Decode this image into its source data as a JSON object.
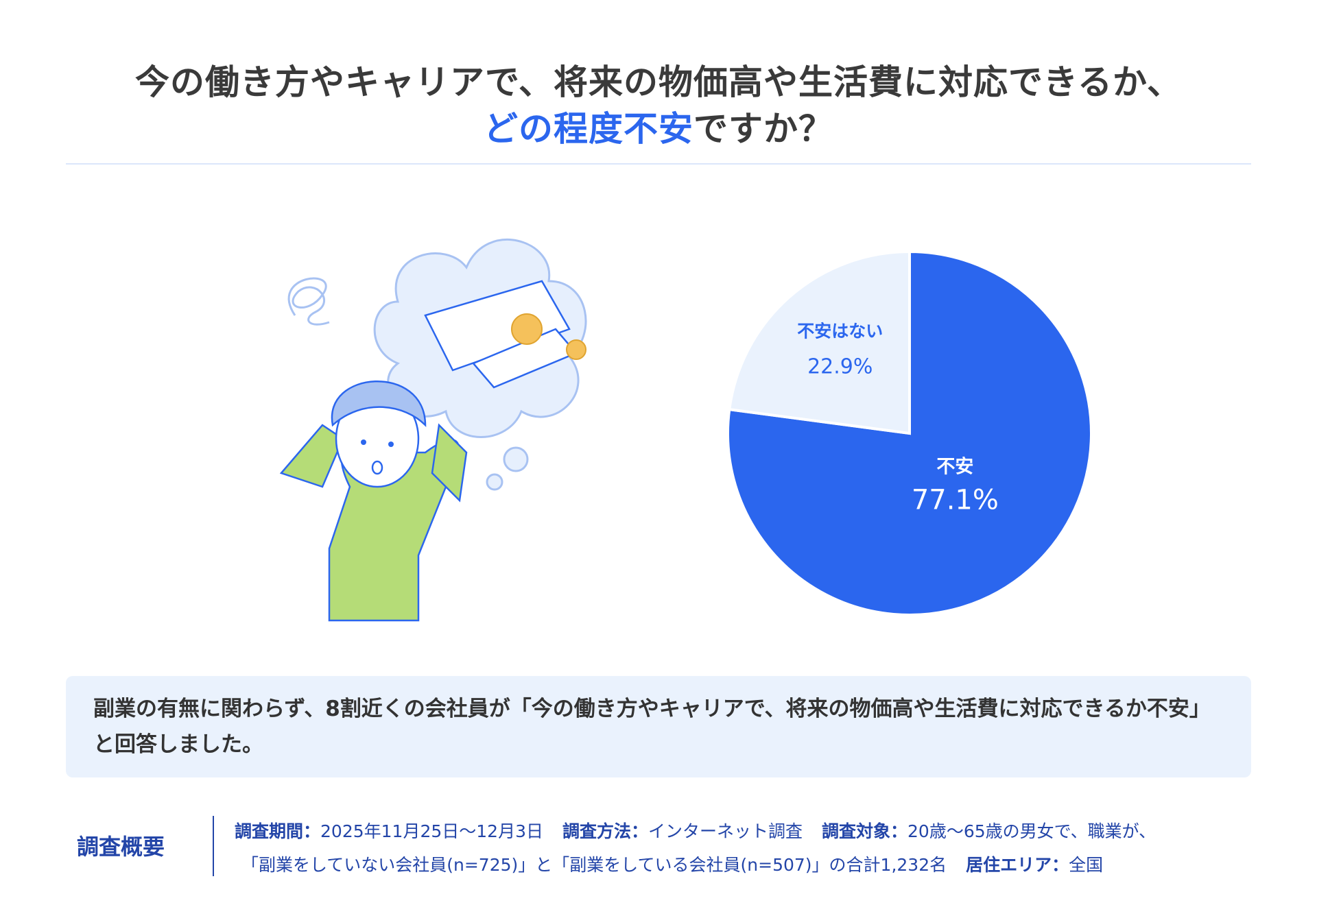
{
  "title": {
    "line1": "今の働き方やキャリアで、将来の物価高や生活費に対応できるか、",
    "line2_highlight": "どの程度不安",
    "line2_rest": "ですか？"
  },
  "colors": {
    "accent": "#2b66ee",
    "light": "#eaf2fd",
    "text": "#333333",
    "footer": "#2345a8"
  },
  "chart_data": {
    "type": "pie",
    "start": "top",
    "direction": "clockwise",
    "slices": [
      {
        "label": "不安",
        "value": 77.1,
        "display": "77.1%",
        "color": "#2b66ee"
      },
      {
        "label": "不安はない",
        "value": 22.9,
        "display": "22.9%",
        "color": "#eaf2fd"
      }
    ]
  },
  "summary": "副業の有無に関わらず、8割近くの会社員が「今の働き方やキャリアで、将来の物価高や生活費に対応できるか不安」と回答しました。",
  "footer": {
    "heading": "調査概要",
    "period_label": "調査期間：",
    "period_value": "2025年11月25日〜12月3日",
    "method_label": "調査方法：",
    "method_value": "インターネット調査",
    "target_label": "調査対象：",
    "target_value": "20歳〜65歳の男女で、職業が、",
    "target_value2": "「副業をしていない会社員(n=725)」と「副業をしている会社員(n=507)」の合計1,232名",
    "area_label": "居住エリア：",
    "area_value": "全国"
  },
  "illustration": {
    "icon": "worried-person-thinking-about-money"
  }
}
